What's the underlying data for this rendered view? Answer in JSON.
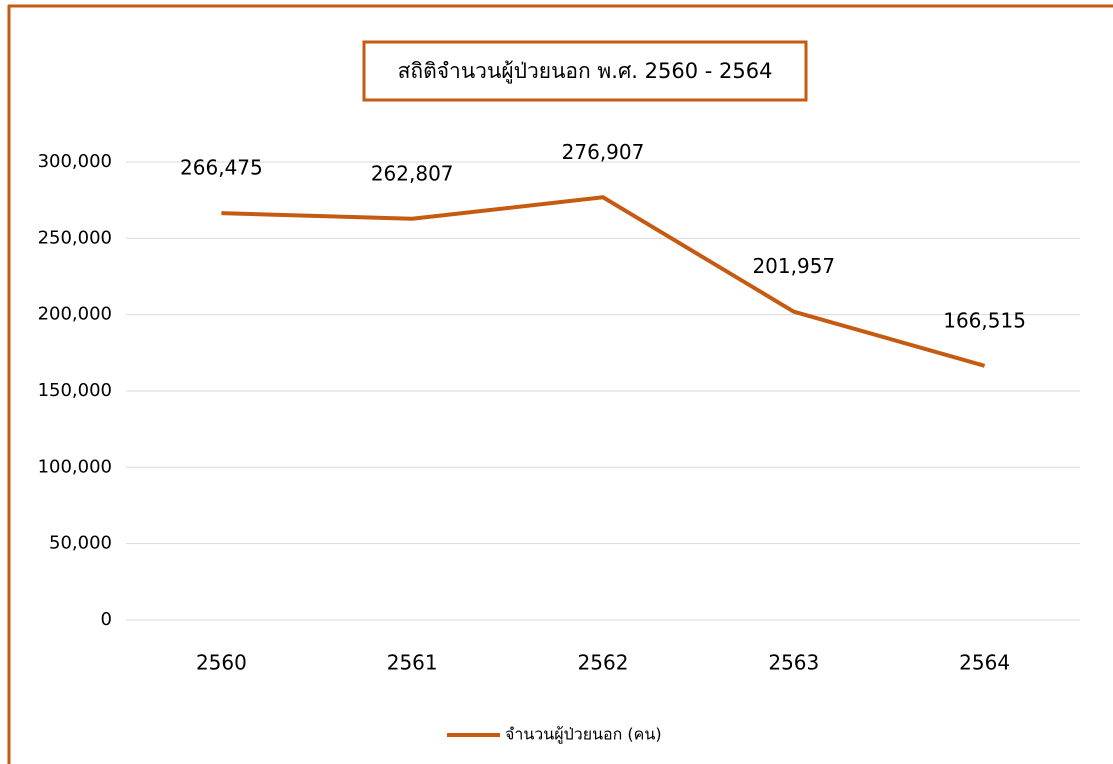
{
  "chart_data": {
    "type": "line",
    "title": "สถิติจำนวนผู้ป่วยนอก  พ.ศ. 2560 - 2564",
    "categories": [
      "2560",
      "2561",
      "2562",
      "2563",
      "2564"
    ],
    "series": [
      {
        "name": "จำนวนผู้ป่วยนอก (คน)",
        "color": "#c55a11",
        "values": [
          266475,
          262807,
          276907,
          201957,
          166515
        ],
        "value_labels": [
          "266,475",
          "262,807",
          "276,907",
          "201,957",
          "166,515"
        ]
      }
    ],
    "ylim": [
      0,
      300000
    ],
    "yticks": [
      0,
      {
        "value": 50000,
        "label": "50,000"
      },
      {
        "value": 100000,
        "label": "100,000"
      },
      {
        "value": 150000,
        "label": "150,000"
      },
      {
        "value": 200000,
        "label": "200,000"
      },
      {
        "value": 250000,
        "label": "250,000"
      },
      {
        "value": 300000,
        "label": "300,000"
      }
    ],
    "grid": true,
    "legend": "bottom"
  }
}
